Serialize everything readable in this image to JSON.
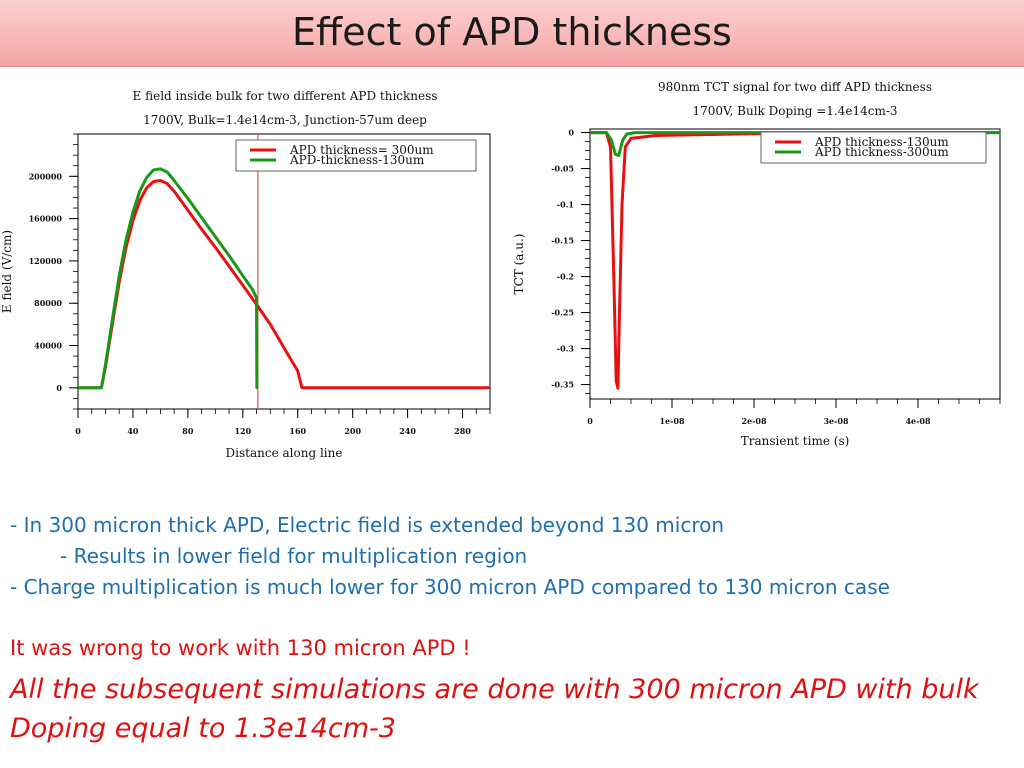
{
  "slide": {
    "title": "Effect of APD thickness",
    "bullets": [
      "- In 300 micron thick APD, Electric field is extended beyond 130 micron",
      "- Results in lower field for multiplication region",
      "- Charge multiplication is much lower for 300 micron APD compared to 130 micron case"
    ],
    "conclusion_1": "It was wrong to work with 130 micron APD !",
    "conclusion_2": "All the subsequent simulations are done with 300 micron APD with bulk Doping equal to 1.3e14cm-3"
  },
  "chart_data": [
    {
      "type": "line",
      "title": "E field inside bulk for two different APD thickness",
      "subtitle": "1700V, Bulk=1.4e14cm-3, Junction-57um deep",
      "xlabel": "Distance along line",
      "ylabel": "E field (V/cm)",
      "xlim": [
        0,
        300
      ],
      "ylim": [
        -20000,
        240000
      ],
      "xticks": [
        "0",
        "40",
        "80",
        "120",
        "160",
        "200",
        "240",
        "280"
      ],
      "yticks": [
        "0",
        "40000",
        "80000",
        "120000",
        "160000",
        "200000"
      ],
      "legend_position": "top-right",
      "marker_line_x": 131,
      "series": [
        {
          "name": "APD thickness= 300um",
          "color": "#e81010",
          "points": [
            [
              0,
              0
            ],
            [
              17,
              0
            ],
            [
              17.5,
              3000
            ],
            [
              20,
              20000
            ],
            [
              25,
              60000
            ],
            [
              30,
              100000
            ],
            [
              35,
              133000
            ],
            [
              40,
              158000
            ],
            [
              45,
              177000
            ],
            [
              50,
              189000
            ],
            [
              55,
              195000
            ],
            [
              60,
              196000
            ],
            [
              65,
              193000
            ],
            [
              70,
              186000
            ],
            [
              80,
              168000
            ],
            [
              90,
              150000
            ],
            [
              100,
              133000
            ],
            [
              110,
              115000
            ],
            [
              120,
              97000
            ],
            [
              131,
              77000
            ],
            [
              140,
              60000
            ],
            [
              150,
              38000
            ],
            [
              160,
              16000
            ],
            [
              163,
              0
            ],
            [
              300,
              0
            ]
          ]
        },
        {
          "name": "APD-thickness-130um",
          "color": "#189818",
          "points": [
            [
              0,
              0
            ],
            [
              17,
              0
            ],
            [
              17.5,
              3000
            ],
            [
              20,
              22000
            ],
            [
              25,
              64000
            ],
            [
              30,
              106000
            ],
            [
              35,
              140000
            ],
            [
              40,
              166000
            ],
            [
              45,
              186000
            ],
            [
              50,
              199000
            ],
            [
              55,
              206000
            ],
            [
              60,
              207000
            ],
            [
              65,
              204000
            ],
            [
              70,
              196000
            ],
            [
              80,
              179000
            ],
            [
              90,
              161000
            ],
            [
              100,
              143000
            ],
            [
              110,
              125000
            ],
            [
              120,
              106000
            ],
            [
              127,
              93000
            ],
            [
              130,
              85000
            ],
            [
              130.3,
              0
            ],
            [
              131,
              0
            ]
          ]
        }
      ]
    },
    {
      "type": "line",
      "title": "980nm TCT signal for two diff APD thickness",
      "subtitle": "1700V, Bulk Doping =1.4e14cm-3",
      "xlabel": "Transient time (s)",
      "ylabel": "TCT (a.u.)",
      "xlim": [
        0,
        5e-08
      ],
      "ylim": [
        -0.37,
        0.005
      ],
      "xticks": [
        "0",
        "1e-08",
        "2e-08",
        "3e-08",
        "4e-08"
      ],
      "yticks": [
        "0",
        "-0.05",
        "-0.1",
        "-0.15",
        "-0.2",
        "-0.25",
        "-0.3",
        "-0.35"
      ],
      "legend_position": "top-right",
      "series": [
        {
          "name": "APD thickness-130um",
          "color": "#e81010",
          "points": [
            [
              0,
              0
            ],
            [
              2e-09,
              0
            ],
            [
              2.5e-09,
              -0.02
            ],
            [
              2.9e-09,
              -0.2
            ],
            [
              3.2e-09,
              -0.345
            ],
            [
              3.4e-09,
              -0.355
            ],
            [
              3.6e-09,
              -0.25
            ],
            [
              3.9e-09,
              -0.1
            ],
            [
              4.3e-09,
              -0.02
            ],
            [
              5e-09,
              -0.008
            ],
            [
              8e-09,
              -0.004
            ],
            [
              1.8e-08,
              -0.002
            ],
            [
              3e-08,
              0
            ],
            [
              5e-08,
              0
            ]
          ]
        },
        {
          "name": "APD thickness-300um",
          "color": "#189818",
          "points": [
            [
              0,
              0
            ],
            [
              2e-09,
              0
            ],
            [
              2.6e-09,
              -0.01
            ],
            [
              3.1e-09,
              -0.03
            ],
            [
              3.5e-09,
              -0.032
            ],
            [
              4e-09,
              -0.01
            ],
            [
              4.5e-09,
              -0.002
            ],
            [
              5.5e-09,
              0
            ],
            [
              5e-08,
              0
            ]
          ]
        }
      ]
    }
  ]
}
